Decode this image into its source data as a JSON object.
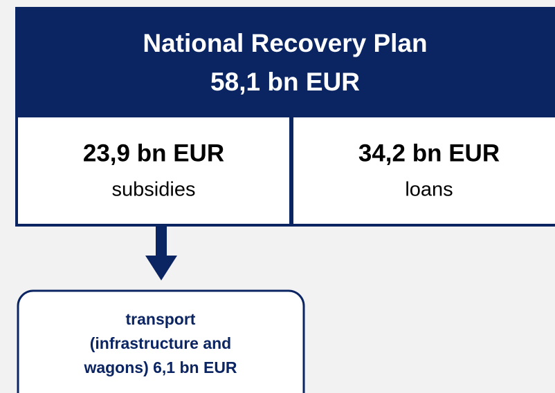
{
  "header": {
    "lines": [
      "National Recovery Plan",
      "58,1 bn EUR"
    ]
  },
  "boxes": [
    {
      "amount": "23,9 bn EUR",
      "label": "subsidies"
    },
    {
      "amount": "34,2 bn EUR",
      "label": "loans"
    }
  ],
  "nodes": [
    {
      "lines": [
        "transport",
        "(infrastructure and",
        "wagons) 6,1 bn EUR"
      ]
    }
  ]
}
